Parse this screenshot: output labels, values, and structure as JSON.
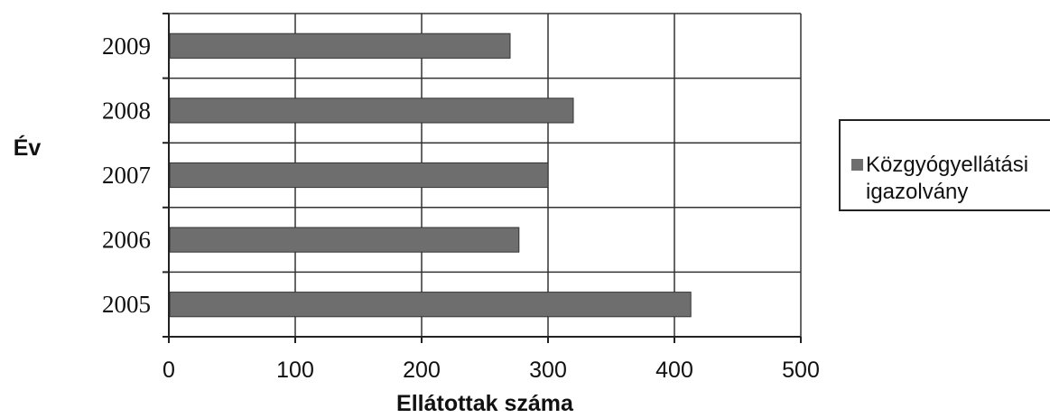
{
  "chart_data": {
    "type": "bar",
    "orientation": "horizontal",
    "categories": [
      "2009",
      "2008",
      "2007",
      "2006",
      "2005"
    ],
    "series": [
      {
        "name": "Közgyógyellátási igazolvány",
        "values": [
          270,
          320,
          300,
          277,
          413
        ],
        "color": "#6e6e6e"
      }
    ],
    "xlabel": "Ellátottak száma",
    "ylabel": "Év",
    "xlim": [
      0,
      500
    ],
    "xticks": [
      "0",
      "100",
      "200",
      "300",
      "400",
      "500"
    ],
    "grid": true,
    "legend_position": "right"
  },
  "legend": {
    "line1": "Közgyógyellátási",
    "line2": "igazolvány"
  }
}
